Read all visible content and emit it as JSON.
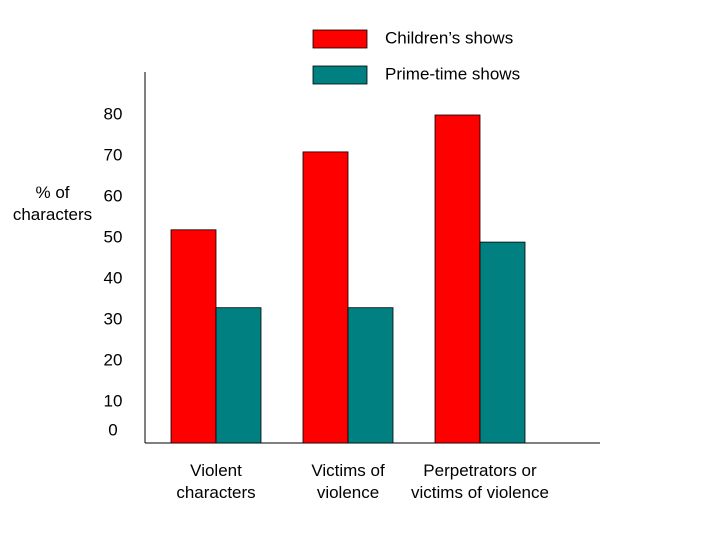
{
  "chart_data": {
    "type": "bar",
    "y_label": "% of characters",
    "categories": [
      "Violent characters",
      "Victims of violence",
      "Perpetrators or victims of violence"
    ],
    "series": [
      {
        "name": "Children’s shows",
        "color": "#ff0000",
        "values": [
          52,
          71,
          80
        ]
      },
      {
        "name": "Prime-time shows",
        "color": "#008080",
        "values": [
          33,
          33,
          49
        ]
      }
    ],
    "ylim": [
      0,
      90
    ],
    "yticks": [
      0,
      10,
      20,
      30,
      40,
      50,
      60,
      70,
      80
    ],
    "grid": false
  }
}
